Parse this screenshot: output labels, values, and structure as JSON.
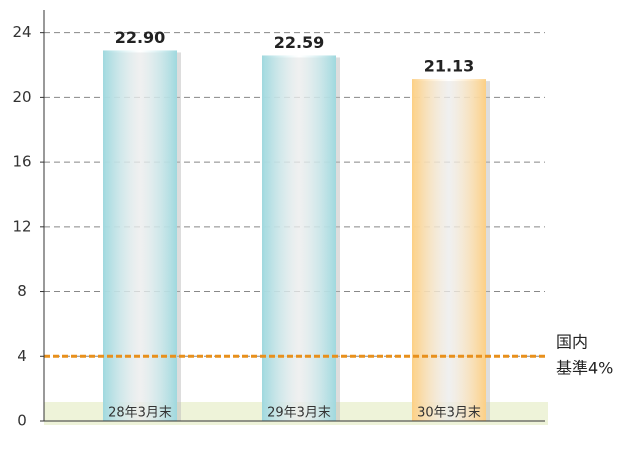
{
  "chart_data": {
    "type": "bar",
    "categories": [
      "28年3月末",
      "29年3月末",
      "30年3月末"
    ],
    "values": [
      22.9,
      22.59,
      21.13
    ],
    "value_labels": [
      "22.90",
      "22.59",
      "21.13"
    ],
    "colors": [
      "#9fd8de",
      "#9fd8de",
      "#fccf84"
    ],
    "ylim": [
      0,
      25.4
    ],
    "yticks": [
      0,
      4,
      8,
      12,
      16,
      20,
      24
    ],
    "grid": true,
    "reference_line": {
      "value": 4,
      "color": "#e8901c",
      "label": [
        "国内",
        "基準4%"
      ]
    }
  }
}
